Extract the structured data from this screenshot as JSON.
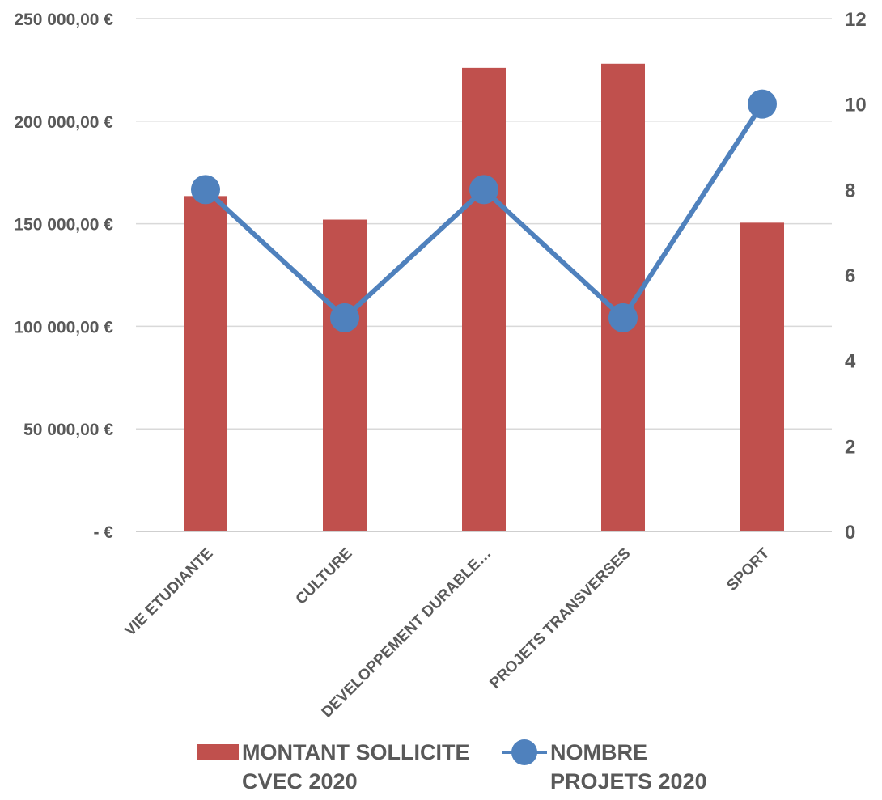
{
  "chart_data": {
    "type": "bar",
    "categories": [
      "VIE ETUDIANTE",
      "CULTURE",
      "DEVELOPPEMENT DURABLE…",
      "PROJETS TRANSVERSES",
      "SPORT"
    ],
    "series": [
      {
        "name": "MONTANT SOLLICITE CVEC 2020",
        "type": "bar",
        "axis": "left",
        "color": "#C0504D",
        "values": [
          163500,
          152000,
          226000,
          228000,
          150500
        ]
      },
      {
        "name": "NOMBRE PROJETS 2020",
        "type": "line",
        "axis": "right",
        "color": "#4F81BD",
        "marker": "circle",
        "values": [
          8,
          5,
          8,
          5,
          10
        ]
      }
    ],
    "y_left": {
      "min": 0,
      "max": 250000,
      "step": 50000,
      "tick_labels": [
        "-  €",
        "50 000,00 €",
        "100 000,00 €",
        "150 000,00 €",
        "200 000,00 €",
        "250 000,00 €"
      ]
    },
    "y_right": {
      "min": 0,
      "max": 12,
      "step": 2,
      "tick_labels": [
        "0",
        "2",
        "4",
        "6",
        "8",
        "10",
        "12"
      ]
    },
    "grid": true,
    "legend": "bottom",
    "title": "",
    "xlabel": "",
    "ylabel": ""
  },
  "legend": {
    "bar_label": "MONTANT SOLLICITE\nCVEC 2020",
    "line_label": "NOMBRE\nPROJETS 2020"
  }
}
